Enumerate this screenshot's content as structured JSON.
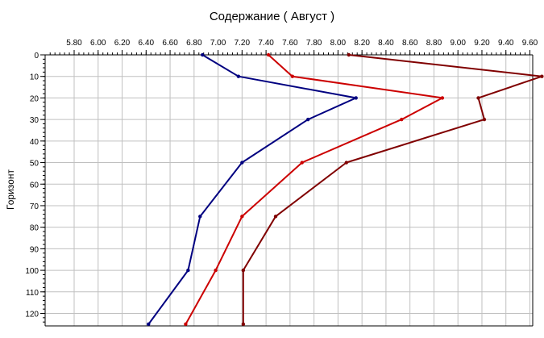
{
  "chart_data": {
    "type": "line",
    "title": "Содержание    ( Август )",
    "xlabel": "",
    "ylabel": "Горизонт",
    "xlim": [
      5.6,
      9.7
    ],
    "ylim": [
      0,
      126
    ],
    "x_ticks": [
      "5.80",
      "6.00",
      "6.20",
      "6.40",
      "6.60",
      "6.80",
      "7.00",
      "7.20",
      "7.40",
      "7.60",
      "7.80",
      "8.00",
      "8.20",
      "8.40",
      "8.60",
      "8.80",
      "9.00",
      "9.20",
      "9.40",
      "9.60"
    ],
    "x_tick_values": [
      5.8,
      6.0,
      6.2,
      6.4,
      6.6,
      6.8,
      7.0,
      7.2,
      7.4,
      7.6,
      7.8,
      8.0,
      8.2,
      8.4,
      8.6,
      8.8,
      9.0,
      9.2,
      9.4,
      9.6
    ],
    "y_ticks": [
      "0",
      "10",
      "20",
      "30",
      "40",
      "50",
      "60",
      "70",
      "80",
      "90",
      "100",
      "110",
      "120"
    ],
    "y_tick_values": [
      0,
      10,
      20,
      30,
      40,
      50,
      60,
      70,
      80,
      90,
      100,
      110,
      120
    ],
    "grid": true,
    "axis_position": "top",
    "series": [
      {
        "color": "#000080",
        "x": [
          6.87,
          7.17,
          8.15,
          7.75,
          7.2,
          6.85,
          6.75,
          6.42
        ],
        "y": [
          0,
          10,
          20,
          30,
          50,
          75,
          100,
          125
        ]
      },
      {
        "color": "#cc0000",
        "x": [
          7.42,
          7.62,
          8.87,
          8.53,
          7.7,
          7.2,
          6.98,
          6.73
        ],
        "y": [
          0,
          10,
          20,
          30,
          50,
          75,
          100,
          125
        ]
      },
      {
        "color": "#800000",
        "x": [
          8.09,
          9.7,
          9.17,
          9.22,
          8.07,
          7.48,
          7.21,
          7.21
        ],
        "y": [
          0,
          10,
          20,
          30,
          50,
          75,
          100,
          125
        ]
      }
    ]
  }
}
